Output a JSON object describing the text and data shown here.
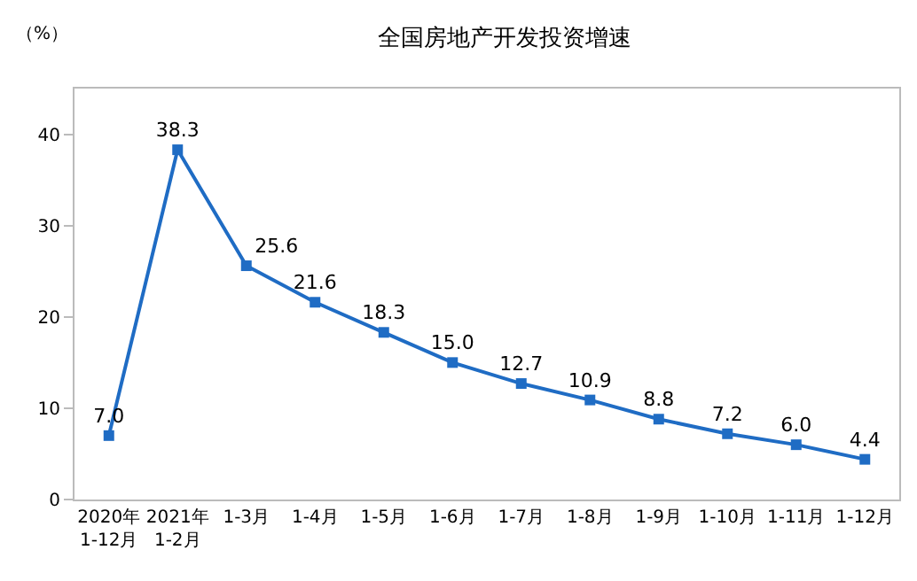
{
  "chart_data": {
    "type": "line",
    "title": "全国房地产开发投资增速",
    "ylabel": "（%）",
    "categories": [
      "2020年\n1-12月",
      "2021年\n1-2月",
      "1-3月",
      "1-4月",
      "1-5月",
      "1-6月",
      "1-7月",
      "1-8月",
      "1-9月",
      "1-10月",
      "1-11月",
      "1-12月"
    ],
    "series": [
      {
        "color": "#1f6cc4",
        "values": [
          7.0,
          38.3,
          25.6,
          21.6,
          18.3,
          15.0,
          12.7,
          10.9,
          8.8,
          7.2,
          6.0,
          4.4
        ]
      }
    ],
    "value_labels": [
      "7.0",
      "38.3",
      "25.6",
      "21.6",
      "18.3",
      "15.0",
      "12.7",
      "10.9",
      "8.8",
      "7.2",
      "6.0",
      "4.4"
    ],
    "ylim": [
      0,
      45
    ],
    "yticks": [
      0,
      10,
      20,
      30,
      40
    ],
    "grid": false,
    "marker": "square",
    "line_style": "solid"
  }
}
